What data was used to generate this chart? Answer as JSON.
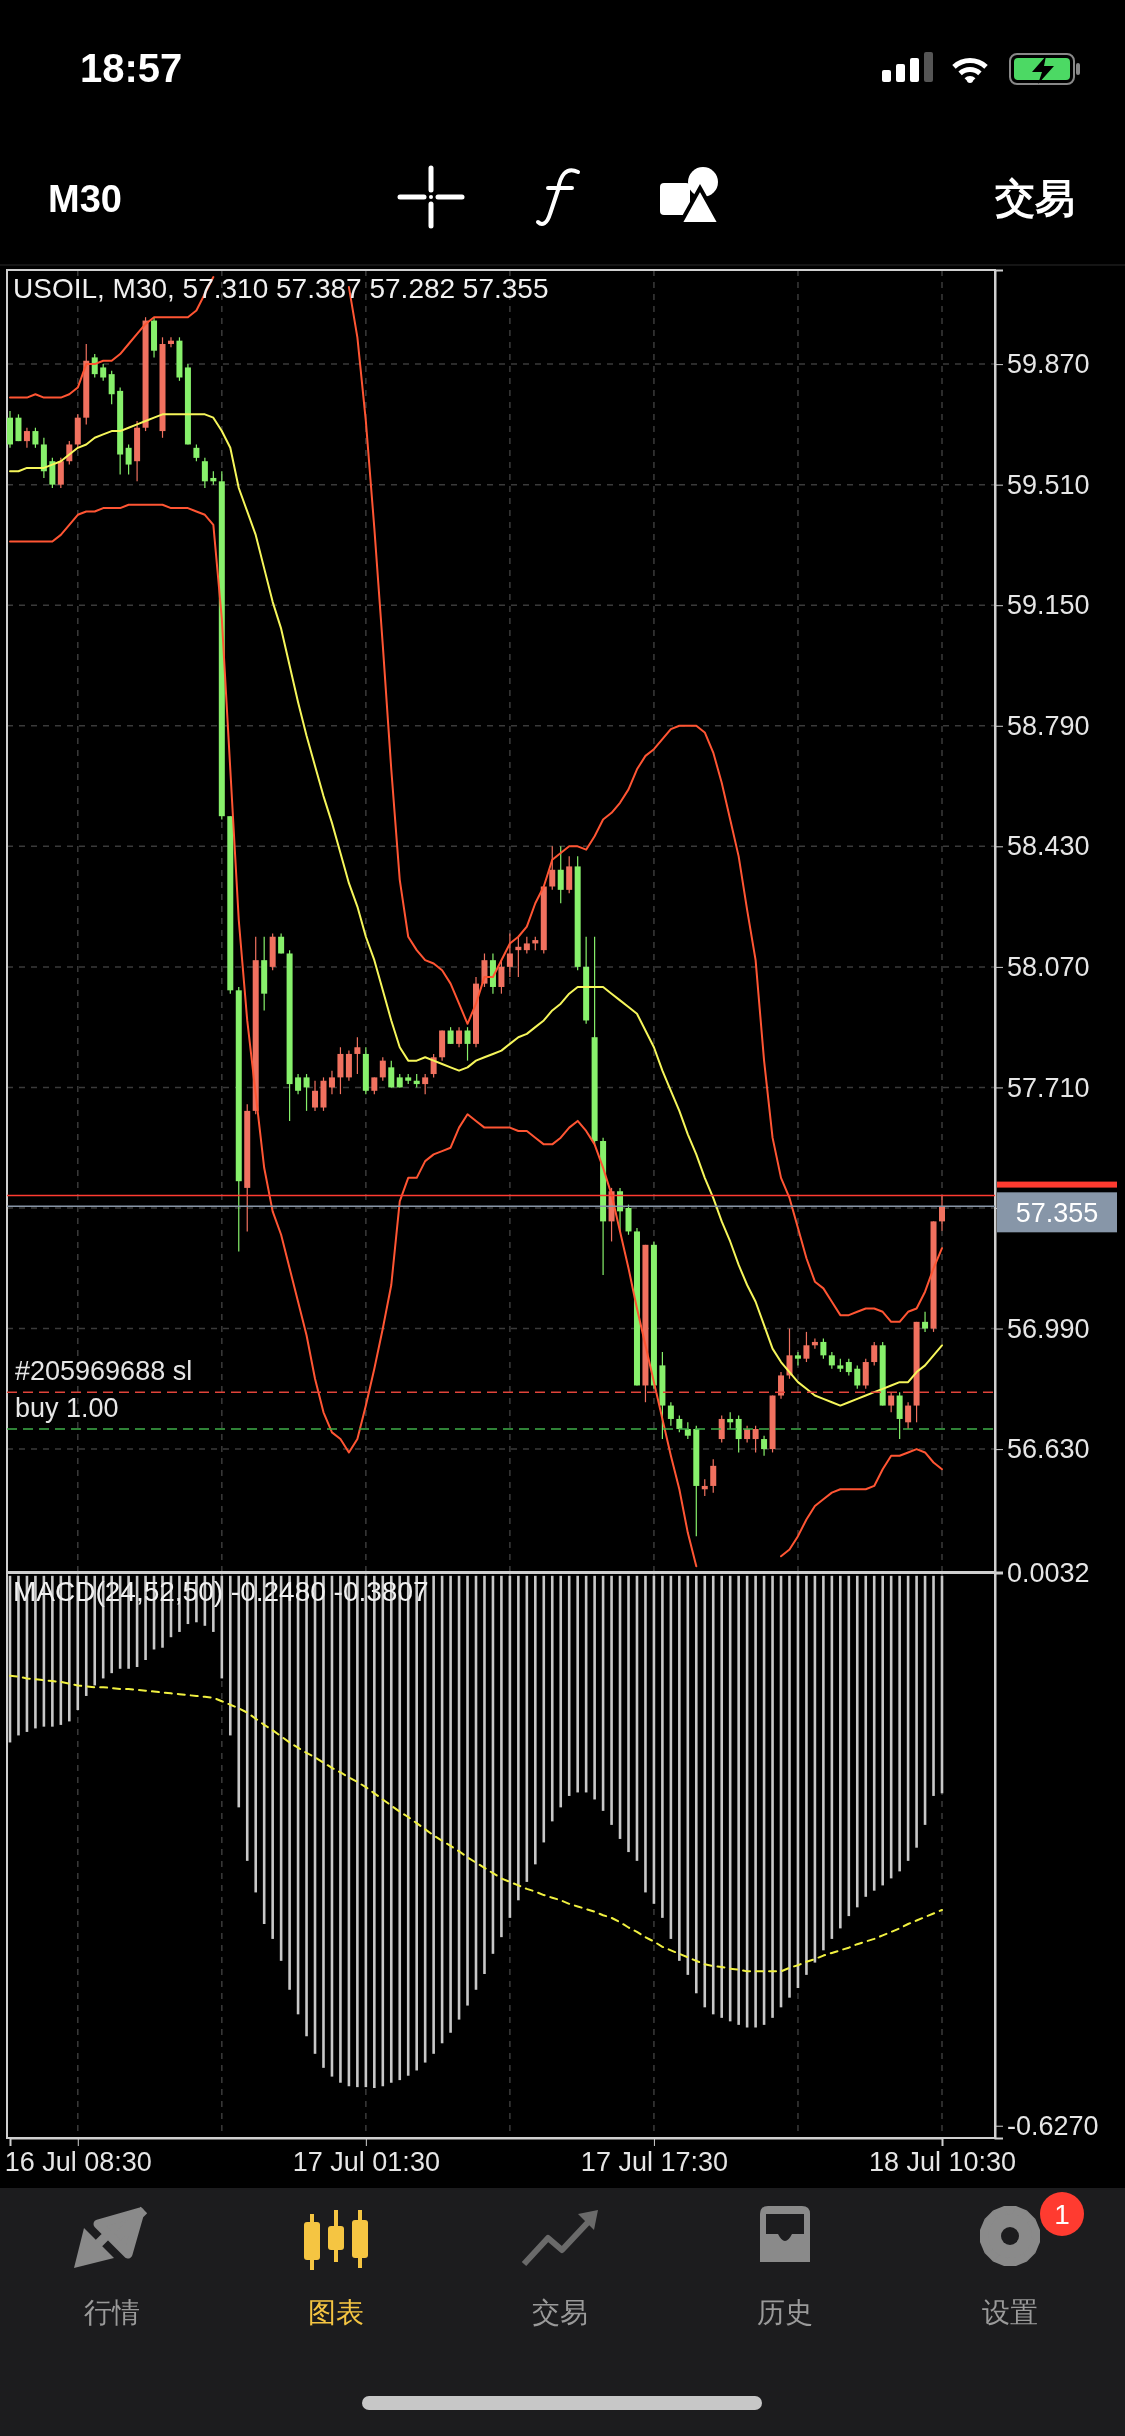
{
  "chart_data": [
    {
      "type": "candlestick",
      "title": "USOIL, M30, 57.310 57.387 57.282 57.355",
      "categories": [
        null,
        null,
        null,
        null,
        null,
        null,
        null,
        null,
        null,
        null,
        null,
        null,
        null,
        null,
        null,
        null,
        null,
        null,
        null,
        null,
        null,
        null,
        null,
        null,
        null,
        null,
        null,
        null,
        null,
        null,
        null,
        null,
        null,
        null,
        null,
        null,
        null,
        null,
        null,
        null,
        null,
        null,
        null,
        null,
        null,
        null,
        null,
        null,
        null,
        null,
        null,
        null,
        null,
        null,
        null,
        null,
        null,
        null,
        null,
        null,
        null,
        null,
        null,
        null,
        null,
        null,
        null,
        null,
        null,
        null,
        null,
        null,
        null,
        null,
        null,
        null,
        null,
        null,
        null,
        null,
        null,
        null,
        null,
        null,
        null,
        null,
        null,
        null,
        null,
        null,
        null,
        null,
        null,
        null,
        null,
        null,
        null,
        null,
        null,
        null,
        null,
        null,
        null,
        null,
        null,
        null,
        null,
        null,
        null,
        null,
        null
      ],
      "ohlc": [
        [
          59.71,
          59.73,
          59.62,
          59.63
        ],
        [
          59.71,
          59.72,
          59.64,
          59.64
        ],
        [
          59.64,
          59.68,
          59.62,
          59.67
        ],
        [
          59.67,
          59.68,
          59.62,
          59.63
        ],
        [
          59.63,
          59.65,
          59.53,
          59.55
        ],
        [
          59.58,
          59.59,
          59.5,
          59.51
        ],
        [
          59.51,
          59.59,
          59.5,
          59.58
        ],
        [
          59.58,
          59.64,
          59.57,
          59.63
        ],
        [
          59.63,
          59.72,
          59.62,
          59.71
        ],
        [
          59.71,
          59.93,
          59.69,
          59.88
        ],
        [
          59.89,
          59.9,
          59.83,
          59.84
        ],
        [
          59.86,
          59.87,
          59.82,
          59.83
        ],
        [
          59.84,
          59.85,
          59.75,
          59.78
        ],
        [
          59.79,
          59.8,
          59.54,
          59.6
        ],
        [
          59.62,
          59.63,
          59.54,
          59.57
        ],
        [
          59.58,
          59.7,
          59.52,
          59.68
        ],
        [
          59.68,
          60.01,
          59.67,
          60.0
        ],
        [
          60.0,
          60.01,
          59.89,
          59.91
        ],
        [
          59.67,
          59.95,
          59.65,
          59.93
        ],
        [
          59.93,
          59.95,
          59.92,
          59.94
        ],
        [
          59.94,
          59.95,
          59.82,
          59.83
        ],
        [
          59.86,
          59.87,
          59.63,
          59.63
        ],
        [
          59.62,
          59.63,
          59.58,
          59.59
        ],
        [
          59.58,
          59.59,
          59.5,
          59.52
        ],
        [
          59.53,
          59.55,
          59.51,
          59.52
        ],
        [
          59.52,
          59.55,
          58.51,
          58.52
        ],
        [
          58.52,
          58.52,
          57.99,
          58.0
        ],
        [
          58.0,
          58.01,
          57.22,
          57.43
        ],
        [
          57.41,
          57.66,
          57.28,
          57.64
        ],
        [
          57.64,
          58.16,
          57.63,
          58.09
        ],
        [
          58.09,
          58.16,
          57.94,
          57.99
        ],
        [
          58.07,
          58.17,
          58.06,
          58.16
        ],
        [
          58.16,
          58.17,
          58.11,
          58.11
        ],
        [
          58.11,
          58.12,
          57.61,
          57.72
        ],
        [
          57.74,
          57.75,
          57.69,
          57.7
        ],
        [
          57.74,
          57.75,
          57.64,
          57.71
        ],
        [
          57.65,
          57.73,
          57.64,
          57.7
        ],
        [
          57.65,
          57.74,
          57.64,
          57.73
        ],
        [
          57.71,
          57.76,
          57.69,
          57.74
        ],
        [
          57.74,
          57.83,
          57.69,
          57.81
        ],
        [
          57.74,
          57.82,
          57.73,
          57.81
        ],
        [
          57.81,
          57.86,
          57.75,
          57.83
        ],
        [
          57.81,
          57.83,
          57.69,
          57.7
        ],
        [
          57.7,
          57.74,
          57.69,
          57.74
        ],
        [
          57.74,
          57.8,
          57.73,
          57.79
        ],
        [
          57.77,
          57.79,
          57.71,
          57.71
        ],
        [
          57.74,
          57.75,
          57.71,
          57.71
        ],
        [
          57.74,
          57.75,
          57.72,
          57.73
        ],
        [
          57.73,
          57.75,
          57.71,
          57.72
        ],
        [
          57.72,
          57.75,
          57.69,
          57.74
        ],
        [
          57.75,
          57.81,
          57.74,
          57.8
        ],
        [
          57.8,
          57.88,
          57.79,
          57.88
        ],
        [
          57.88,
          57.89,
          57.84,
          57.84
        ],
        [
          57.84,
          57.89,
          57.83,
          57.88
        ],
        [
          57.88,
          57.89,
          57.79,
          57.84
        ],
        [
          57.84,
          58.04,
          57.83,
          58.02
        ],
        [
          58.02,
          58.11,
          58.01,
          58.09
        ],
        [
          58.09,
          58.11,
          57.99,
          58.01
        ],
        [
          58.01,
          58.09,
          57.99,
          58.07
        ],
        [
          58.07,
          58.17,
          58.04,
          58.11
        ],
        [
          58.12,
          58.16,
          58.04,
          58.13
        ],
        [
          58.12,
          58.16,
          58.11,
          58.14
        ],
        [
          58.14,
          58.16,
          58.12,
          58.15
        ],
        [
          58.12,
          58.31,
          58.11,
          58.31
        ],
        [
          58.31,
          58.43,
          58.3,
          58.36
        ],
        [
          58.36,
          58.43,
          58.26,
          58.3
        ],
        [
          58.3,
          58.4,
          58.29,
          58.37
        ],
        [
          58.37,
          58.4,
          58.06,
          58.07
        ],
        [
          58.07,
          58.16,
          57.9,
          57.91
        ],
        [
          57.86,
          58.16,
          57.54,
          57.55
        ],
        [
          57.55,
          57.56,
          57.15,
          57.31
        ],
        [
          57.31,
          57.41,
          57.25,
          57.4
        ],
        [
          57.4,
          57.41,
          57.28,
          57.34
        ],
        [
          57.35,
          57.36,
          57.27,
          57.28
        ],
        [
          57.28,
          57.29,
          56.82,
          56.82
        ],
        [
          56.82,
          57.24,
          56.77,
          57.24
        ],
        [
          57.24,
          57.25,
          56.81,
          56.82
        ],
        [
          56.88,
          56.92,
          56.66,
          56.76
        ],
        [
          56.76,
          56.77,
          56.7,
          56.72
        ],
        [
          56.72,
          56.73,
          56.68,
          56.69
        ],
        [
          56.69,
          56.71,
          56.66,
          56.67
        ],
        [
          56.69,
          56.7,
          56.37,
          56.52
        ],
        [
          56.51,
          56.54,
          56.49,
          56.52
        ],
        [
          56.52,
          56.6,
          56.5,
          56.58
        ],
        [
          56.66,
          56.73,
          56.65,
          56.72
        ],
        [
          56.72,
          56.74,
          56.69,
          56.71
        ],
        [
          56.72,
          56.73,
          56.62,
          56.66
        ],
        [
          56.66,
          56.7,
          56.65,
          56.69
        ],
        [
          56.66,
          56.7,
          56.62,
          56.69
        ],
        [
          56.66,
          56.67,
          56.61,
          56.63
        ],
        [
          56.63,
          56.79,
          56.62,
          56.79
        ],
        [
          56.79,
          56.86,
          56.78,
          56.85
        ],
        [
          56.85,
          56.99,
          56.84,
          56.91
        ],
        [
          56.91,
          56.92,
          56.88,
          56.9
        ],
        [
          56.9,
          56.98,
          56.89,
          56.94
        ],
        [
          56.94,
          56.96,
          56.93,
          56.95
        ],
        [
          56.95,
          56.96,
          56.9,
          56.91
        ],
        [
          56.91,
          56.92,
          56.87,
          56.88
        ],
        [
          56.88,
          56.9,
          56.86,
          56.87
        ],
        [
          56.89,
          56.9,
          56.85,
          56.86
        ],
        [
          56.87,
          56.88,
          56.81,
          56.82
        ],
        [
          56.82,
          56.9,
          56.81,
          56.89
        ],
        [
          56.89,
          56.95,
          56.88,
          56.94
        ],
        [
          56.94,
          56.95,
          56.76,
          56.76
        ],
        [
          56.76,
          56.8,
          56.74,
          56.79
        ],
        [
          56.79,
          56.8,
          56.66,
          56.72
        ],
        [
          56.71,
          56.77,
          56.69,
          56.76
        ],
        [
          56.76,
          57.01,
          56.71,
          57.01
        ],
        [
          57.01,
          57.04,
          56.98,
          56.99
        ],
        [
          56.99,
          57.31,
          56.98,
          57.31
        ],
        [
          57.31,
          57.387,
          57.282,
          57.355
        ]
      ],
      "colors": [
        "#87f06b",
        "#87f06b",
        "#f0715f",
        "#87f06b",
        "#87f06b",
        "#87f06b",
        "#f0715f",
        "#f0715f",
        "#f0715f",
        "#f0715f",
        "#87f06b",
        "#87f06b",
        "#87f06b",
        "#87f06b",
        "#87f06b",
        "#f0715f",
        "#f0715f",
        "#87f06b",
        "#f0715f",
        "#f0715f",
        "#87f06b",
        "#87f06b",
        "#87f06b",
        "#87f06b",
        "#87f06b",
        "#87f06b",
        "#87f06b",
        "#87f06b",
        "#f0715f",
        "#f0715f",
        "#87f06b",
        "#f0715f",
        "#87f06b",
        "#87f06b",
        "#87f06b",
        "#87f06b",
        "#f0715f",
        "#f0715f",
        "#f0715f",
        "#f0715f",
        "#f0715f",
        "#f0715f",
        "#87f06b",
        "#f0715f",
        "#f0715f",
        "#87f06b",
        "#87f06b",
        "#87f06b",
        "#87f06b",
        "#f0715f",
        "#f0715f",
        "#f0715f",
        "#87f06b",
        "#f0715f",
        "#87f06b",
        "#f0715f",
        "#f0715f",
        "#87f06b",
        "#f0715f",
        "#f0715f",
        "#f0715f",
        "#f0715f",
        "#f0715f",
        "#f0715f",
        "#f0715f",
        "#87f06b",
        "#f0715f",
        "#87f06b",
        "#87f06b",
        "#87f06b",
        "#87f06b",
        "#f0715f",
        "#87f06b",
        "#87f06b",
        "#87f06b",
        "#f0715f",
        "#87f06b",
        "#87f06b",
        "#87f06b",
        "#87f06b",
        "#87f06b",
        "#87f06b",
        "#f0715f",
        "#f0715f",
        "#f0715f",
        "#87f06b",
        "#87f06b",
        "#f0715f",
        "#f0715f",
        "#87f06b",
        "#f0715f",
        "#f0715f",
        "#f0715f",
        "#87f06b",
        "#f0715f",
        "#f0715f",
        "#87f06b",
        "#87f06b",
        "#87f06b",
        "#87f06b",
        "#87f06b",
        "#f0715f",
        "#f0715f",
        "#87f06b",
        "#f0715f",
        "#87f06b",
        "#f0715f",
        "#f0715f",
        "#87f06b",
        "#f0715f",
        "#f0715f"
      ],
      "series": [
        {
          "type": "line",
          "color": "#ff5533",
          "values": [
            59.77,
            59.77,
            59.77,
            59.78,
            59.77,
            59.77,
            59.77,
            59.78,
            59.8,
            59.87,
            59.87,
            59.88,
            59.88,
            59.9,
            59.93,
            59.96,
            59.99,
            60.01,
            60.01,
            60.01,
            60.01,
            60.01,
            60.03,
            60.08,
            60.13,
            null,
            null,
            null,
            null,
            null,
            null,
            null,
            null,
            null,
            null,
            null,
            null,
            null,
            null,
            null,
            60.1,
            59.95,
            59.7,
            59.38,
            59.03,
            58.66,
            58.33,
            58.16,
            58.12,
            58.09,
            58.08,
            58.06,
            58.02,
            57.96,
            57.9,
            57.96,
            58.04,
            58.04,
            58.09,
            58.14,
            58.16,
            58.19,
            58.26,
            58.31,
            58.39,
            58.41,
            58.43,
            58.43,
            58.42,
            58.46,
            58.51,
            58.53,
            58.56,
            58.6,
            58.66,
            58.7,
            58.72,
            58.75,
            58.78,
            58.79,
            58.79,
            58.79,
            58.77,
            58.71,
            58.62,
            58.51,
            58.4,
            58.24,
            58.09,
            57.79,
            57.56,
            57.44,
            57.38,
            57.29,
            57.2,
            57.13,
            57.11,
            57.07,
            57.03,
            57.03,
            57.04,
            57.05,
            57.05,
            57.04,
            57.01,
            57.01,
            57.04,
            57.05,
            57.1,
            57.17,
            57.23
          ]
        },
        {
          "type": "line",
          "color": "#f5f55a",
          "values": [
            59.55,
            59.55,
            59.56,
            59.56,
            59.56,
            59.57,
            59.58,
            59.6,
            59.62,
            59.63,
            59.65,
            59.66,
            59.67,
            59.67,
            59.68,
            59.69,
            59.7,
            59.71,
            59.72,
            59.72,
            59.72,
            59.72,
            59.72,
            59.72,
            59.71,
            59.67,
            59.62,
            59.5,
            59.43,
            59.36,
            59.26,
            59.16,
            59.08,
            58.97,
            58.86,
            58.76,
            58.67,
            58.58,
            58.5,
            58.41,
            58.32,
            58.25,
            58.16,
            58.09,
            58.0,
            57.91,
            57.83,
            57.79,
            57.79,
            57.8,
            57.79,
            57.78,
            57.77,
            57.76,
            57.77,
            57.79,
            57.8,
            57.81,
            57.82,
            57.84,
            57.86,
            57.87,
            57.89,
            57.91,
            57.94,
            57.96,
            57.99,
            58.01,
            58.01,
            58.01,
            58.01,
            57.99,
            57.97,
            57.95,
            57.93,
            57.88,
            57.83,
            57.76,
            57.7,
            57.64,
            57.57,
            57.51,
            57.44,
            57.38,
            57.31,
            57.25,
            57.18,
            57.12,
            57.07,
            57.0,
            56.93,
            56.89,
            56.86,
            56.83,
            56.81,
            56.79,
            56.78,
            56.77,
            56.76,
            56.77,
            56.78,
            56.79,
            56.8,
            56.81,
            56.82,
            56.83,
            56.83,
            56.86,
            56.88,
            56.91,
            56.94
          ]
        },
        {
          "type": "line",
          "color": "#ff5533",
          "values": [
            59.34,
            59.34,
            59.34,
            59.34,
            59.34,
            59.34,
            59.36,
            59.39,
            59.42,
            59.43,
            59.43,
            59.44,
            59.44,
            59.44,
            59.45,
            59.45,
            59.45,
            59.45,
            59.45,
            59.44,
            59.44,
            59.44,
            59.43,
            59.42,
            59.39,
            59.11,
            58.66,
            58.21,
            57.91,
            57.69,
            57.47,
            57.34,
            57.27,
            57.17,
            57.07,
            56.97,
            56.84,
            56.74,
            56.68,
            56.66,
            56.62,
            56.66,
            56.76,
            56.87,
            56.99,
            57.12,
            57.37,
            57.44,
            57.44,
            57.49,
            57.51,
            57.52,
            57.53,
            57.59,
            57.63,
            57.61,
            57.59,
            57.59,
            57.59,
            57.59,
            57.58,
            57.58,
            57.56,
            57.54,
            57.54,
            57.56,
            57.59,
            57.61,
            57.58,
            57.54,
            57.47,
            57.39,
            57.28,
            57.17,
            57.05,
            56.94,
            56.83,
            56.72,
            56.61,
            56.51,
            56.38,
            56.28,
            null,
            null,
            null,
            null,
            null,
            null,
            null,
            null,
            null,
            56.31,
            56.33,
            56.37,
            56.42,
            56.46,
            56.48,
            56.5,
            56.51,
            56.51,
            56.51,
            56.51,
            56.52,
            56.57,
            56.61,
            56.61,
            56.62,
            56.63,
            56.62,
            56.59,
            56.57
          ]
        }
      ],
      "ylim": [
        56.263,
        60.151
      ],
      "yticks": [
        {
          "value": 56.63,
          "label": "56.630"
        },
        {
          "value": 56.99,
          "label": "56.990"
        },
        {
          "value": 57.35,
          "label": null
        },
        {
          "value": 57.71,
          "label": "57.710"
        },
        {
          "value": 58.07,
          "label": "58.070"
        },
        {
          "value": 58.43,
          "label": "58.430"
        },
        {
          "value": 58.79,
          "label": "58.790"
        },
        {
          "value": 59.15,
          "label": "59.150"
        },
        {
          "value": 59.51,
          "label": "59.510"
        },
        {
          "value": 59.87,
          "label": "59.870"
        }
      ],
      "grid": true,
      "tick_labels": "y",
      "ref_lines": [
        {
          "axis": "y",
          "value": 57.387,
          "color": "#ff3b30"
        },
        {
          "axis": "y",
          "value": 57.355,
          "label": "57.355",
          "color": "#8796a8"
        },
        {
          "axis": "y",
          "value": 56.8,
          "label": "#205969688 sl",
          "color": "#e0443a",
          "line_style": "dashed"
        },
        {
          "axis": "y",
          "value": 56.69,
          "label": "buy 1.00",
          "color": "#3fae4a",
          "line_style": "dashed"
        }
      ],
      "annotations": [
        "18:57",
        "M30",
        "交易",
        "行情",
        "图表",
        "交易",
        "历史",
        "设置",
        "1"
      ]
    },
    {
      "type": "bar",
      "title": "MACD(24,52,50) -0.2480 -0.3807",
      "categories": [
        null,
        null,
        null,
        null,
        null,
        null,
        null,
        null,
        "16 Jul 08:30",
        null,
        null,
        null,
        null,
        null,
        null,
        null,
        null,
        null,
        null,
        null,
        null,
        null,
        null,
        null,
        null,
        null,
        null,
        null,
        null,
        null,
        null,
        null,
        null,
        null,
        null,
        null,
        null,
        null,
        null,
        null,
        null,
        null,
        "17 Jul 01:30",
        null,
        null,
        null,
        null,
        null,
        null,
        null,
        null,
        null,
        null,
        null,
        null,
        null,
        null,
        null,
        null,
        null,
        null,
        null,
        null,
        null,
        null,
        null,
        null,
        null,
        null,
        null,
        null,
        null,
        null,
        null,
        null,
        null,
        "17 Jul 17:30",
        null,
        null,
        null,
        null,
        null,
        null,
        null,
        null,
        null,
        null,
        null,
        null,
        null,
        null,
        null,
        null,
        null,
        null,
        null,
        null,
        null,
        null,
        null,
        null,
        null,
        null,
        null,
        null,
        null,
        null,
        null,
        null,
        null,
        "18 Jul 10:30"
      ],
      "series": [
        {
          "color": "#c8c8c8",
          "values": [
            -0.19,
            -0.182,
            -0.178,
            -0.174,
            -0.172,
            -0.172,
            -0.17,
            -0.166,
            -0.153,
            -0.137,
            -0.125,
            -0.117,
            -0.111,
            -0.106,
            -0.106,
            -0.104,
            -0.096,
            -0.084,
            -0.082,
            -0.07,
            -0.064,
            -0.055,
            -0.053,
            -0.057,
            -0.064,
            -0.117,
            -0.182,
            -0.264,
            -0.325,
            -0.361,
            -0.397,
            -0.414,
            -0.439,
            -0.472,
            -0.5,
            -0.525,
            -0.545,
            -0.561,
            -0.571,
            -0.578,
            -0.582,
            -0.583,
            -0.583,
            -0.584,
            -0.582,
            -0.578,
            -0.575,
            -0.57,
            -0.564,
            -0.555,
            -0.545,
            -0.533,
            -0.521,
            -0.506,
            -0.49,
            -0.472,
            -0.454,
            -0.431,
            -0.412,
            -0.39,
            -0.37,
            -0.349,
            -0.329,
            -0.304,
            -0.28,
            -0.264,
            -0.251,
            -0.247,
            -0.247,
            -0.255,
            -0.268,
            -0.284,
            -0.3,
            -0.315,
            -0.325,
            -0.361,
            -0.374,
            -0.39,
            -0.414,
            -0.439,
            -0.455,
            -0.476,
            -0.492,
            -0.5,
            -0.504,
            -0.508,
            -0.512,
            -0.515,
            -0.515,
            -0.512,
            -0.504,
            -0.492,
            -0.481,
            -0.47,
            -0.455,
            -0.441,
            -0.427,
            -0.414,
            -0.402,
            -0.388,
            -0.378,
            -0.366,
            -0.359,
            -0.353,
            -0.345,
            -0.337,
            -0.325,
            -0.31,
            -0.284,
            -0.251,
            -0.248
          ]
        },
        {
          "type": "line",
          "color": "#f0f040",
          "line_style": "dashed",
          "values": [
            -0.114,
            -0.115,
            -0.117,
            -0.118,
            -0.119,
            -0.12,
            -0.121,
            -0.123,
            -0.125,
            -0.126,
            -0.127,
            -0.127,
            -0.128,
            -0.129,
            -0.129,
            -0.13,
            -0.131,
            -0.132,
            -0.133,
            -0.134,
            -0.135,
            -0.136,
            -0.137,
            -0.138,
            -0.139,
            -0.143,
            -0.147,
            -0.151,
            -0.156,
            -0.163,
            -0.17,
            -0.176,
            -0.183,
            -0.19,
            -0.196,
            -0.202,
            -0.207,
            -0.213,
            -0.219,
            -0.224,
            -0.23,
            -0.235,
            -0.241,
            -0.248,
            -0.255,
            -0.262,
            -0.269,
            -0.275,
            -0.282,
            -0.289,
            -0.296,
            -0.302,
            -0.308,
            -0.314,
            -0.321,
            -0.327,
            -0.333,
            -0.339,
            -0.345,
            -0.349,
            -0.353,
            -0.357,
            -0.36,
            -0.364,
            -0.367,
            -0.37,
            -0.374,
            -0.377,
            -0.38,
            -0.383,
            -0.387,
            -0.39,
            -0.395,
            -0.401,
            -0.406,
            -0.412,
            -0.417,
            -0.423,
            -0.427,
            -0.431,
            -0.435,
            -0.439,
            -0.443,
            -0.445,
            -0.446,
            -0.448,
            -0.449,
            -0.451,
            -0.451,
            -0.451,
            -0.451,
            -0.451,
            -0.447,
            -0.444,
            -0.44,
            -0.437,
            -0.433,
            -0.43,
            -0.427,
            -0.424,
            -0.42,
            -0.417,
            -0.414,
            -0.41,
            -0.406,
            -0.402,
            -0.397,
            -0.393,
            -0.389,
            -0.385,
            -0.381
          ]
        }
      ],
      "ylim": [
        -0.641,
        0.0032
      ],
      "yticks": [
        {
          "value": -0.627,
          "label": "-0.6270"
        },
        {
          "value": 0.0032,
          "label": "0.0032"
        }
      ],
      "grid": "x"
    }
  ]
}
